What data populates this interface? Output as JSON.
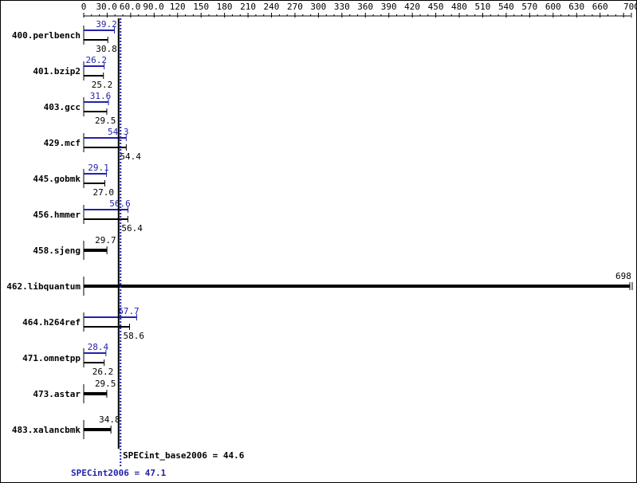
{
  "chart_data": {
    "type": "bar",
    "orientation": "horizontal",
    "xlim": [
      0,
      700
    ],
    "tick_labels": [
      "0",
      "30.0",
      "60.0",
      "90.0",
      "120",
      "150",
      "180",
      "210",
      "240",
      "270",
      "300",
      "330",
      "360",
      "390",
      "420",
      "450",
      "480",
      "510",
      "540",
      "570",
      "600",
      "630",
      "660",
      "700"
    ],
    "categories": [
      "400.perlbench",
      "401.bzip2",
      "403.gcc",
      "429.mcf",
      "445.gobmk",
      "456.hmmer",
      "458.sjeng",
      "462.libquantum",
      "464.h264ref",
      "471.omnetpp",
      "473.astar",
      "483.xalancbmk"
    ],
    "series": [
      {
        "name": "SPECint2006",
        "color": "#2222aa",
        "values": [
          39.2,
          26.2,
          31.6,
          54.3,
          29.1,
          56.6,
          null,
          null,
          67.7,
          28.4,
          null,
          null
        ]
      },
      {
        "name": "SPECint_base2006",
        "color": "#000000",
        "values": [
          30.8,
          25.2,
          29.5,
          54.4,
          27.0,
          56.4,
          29.7,
          698,
          58.6,
          26.2,
          29.5,
          34.8
        ]
      }
    ],
    "value_labels_peak": [
      "39.2",
      "26.2",
      "31.6",
      "54.3",
      "29.1",
      "56.6",
      "",
      "",
      "67.7",
      "28.4",
      "",
      ""
    ],
    "value_labels_base": [
      "30.8",
      "25.2",
      "29.5",
      "54.4",
      "27.0",
      "56.4",
      "29.7",
      "698",
      "58.6",
      "26.2",
      "29.5",
      "34.8"
    ],
    "reference_lines": [
      {
        "label": "SPECint_base2006 = 44.6",
        "value": 44.6,
        "color": "#000000"
      },
      {
        "label": "SPECint2006 = 47.1",
        "value": 47.1,
        "color": "#2222aa"
      }
    ]
  }
}
